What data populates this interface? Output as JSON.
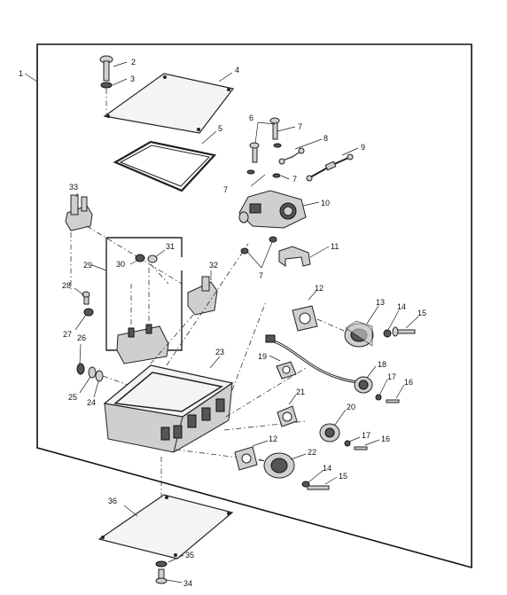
{
  "figure": {
    "callouts": [
      {
        "id": "1",
        "label": "1"
      },
      {
        "id": "2",
        "label": "2"
      },
      {
        "id": "3",
        "label": "3"
      },
      {
        "id": "4",
        "label": "4"
      },
      {
        "id": "5",
        "label": "5"
      },
      {
        "id": "6",
        "label": "6"
      },
      {
        "id": "7a",
        "label": "7"
      },
      {
        "id": "7b",
        "label": "7"
      },
      {
        "id": "7c",
        "label": "7"
      },
      {
        "id": "7d",
        "label": "7"
      },
      {
        "id": "8",
        "label": "8"
      },
      {
        "id": "9",
        "label": "9"
      },
      {
        "id": "10",
        "label": "10"
      },
      {
        "id": "11",
        "label": "11"
      },
      {
        "id": "12a",
        "label": "12"
      },
      {
        "id": "12b",
        "label": "12"
      },
      {
        "id": "13",
        "label": "13"
      },
      {
        "id": "14a",
        "label": "14"
      },
      {
        "id": "14b",
        "label": "14"
      },
      {
        "id": "15a",
        "label": "15"
      },
      {
        "id": "15b",
        "label": "15"
      },
      {
        "id": "16a",
        "label": "16"
      },
      {
        "id": "16b",
        "label": "16"
      },
      {
        "id": "17a",
        "label": "17"
      },
      {
        "id": "17b",
        "label": "17"
      },
      {
        "id": "18",
        "label": "18"
      },
      {
        "id": "19",
        "label": "19"
      },
      {
        "id": "20",
        "label": "20"
      },
      {
        "id": "21",
        "label": "21"
      },
      {
        "id": "22",
        "label": "22"
      },
      {
        "id": "23",
        "label": "23"
      },
      {
        "id": "24",
        "label": "24"
      },
      {
        "id": "25",
        "label": "25"
      },
      {
        "id": "26",
        "label": "26"
      },
      {
        "id": "27",
        "label": "27"
      },
      {
        "id": "28",
        "label": "28"
      },
      {
        "id": "29",
        "label": "29"
      },
      {
        "id": "30",
        "label": "30"
      },
      {
        "id": "31",
        "label": "31"
      },
      {
        "id": "32",
        "label": "32"
      },
      {
        "id": "33",
        "label": "33"
      },
      {
        "id": "34",
        "label": "34"
      },
      {
        "id": "35",
        "label": "35"
      },
      {
        "id": "36",
        "label": "36"
      }
    ]
  }
}
